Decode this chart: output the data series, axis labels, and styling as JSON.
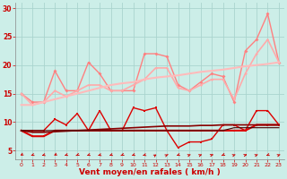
{
  "xlabel": "Vent moyen/en rafales ( km/h )",
  "x": [
    0,
    1,
    2,
    3,
    4,
    5,
    6,
    7,
    8,
    9,
    10,
    11,
    12,
    13,
    14,
    15,
    16,
    17,
    18,
    19,
    20,
    21,
    22,
    23
  ],
  "bg_color": "#cceee8",
  "grid_color": "#aad4ce",
  "line1_y": [
    15.0,
    13.5,
    13.5,
    19.0,
    15.5,
    15.5,
    20.5,
    18.5,
    15.5,
    15.5,
    15.5,
    22.0,
    22.0,
    21.5,
    16.5,
    15.5,
    17.0,
    18.5,
    18.0,
    13.5,
    22.5,
    24.5,
    29.0,
    20.5
  ],
  "line1_color": "#ff8080",
  "line1_lw": 1.0,
  "line2_y": [
    15.0,
    13.0,
    13.5,
    15.5,
    14.5,
    15.5,
    16.5,
    16.5,
    15.5,
    15.5,
    16.5,
    17.5,
    19.5,
    19.5,
    16.0,
    15.5,
    16.5,
    17.5,
    17.5,
    14.0,
    18.5,
    22.0,
    24.5,
    20.5
  ],
  "line2_color": "#ffaaaa",
  "line2_lw": 1.2,
  "line3_y": [
    13.0,
    13.0,
    13.5,
    14.0,
    14.5,
    15.0,
    15.5,
    16.0,
    16.5,
    16.8,
    17.0,
    17.5,
    17.8,
    18.0,
    18.2,
    18.5,
    18.8,
    19.0,
    19.2,
    19.5,
    19.8,
    20.0,
    20.2,
    20.5
  ],
  "line3_color": "#ffbbbb",
  "line3_lw": 1.5,
  "line4_y": [
    8.5,
    8.5,
    8.5,
    10.5,
    9.5,
    11.5,
    8.5,
    12.0,
    8.5,
    8.5,
    12.5,
    12.0,
    12.5,
    8.5,
    5.5,
    6.5,
    6.5,
    7.0,
    9.5,
    9.5,
    8.5,
    12.0,
    12.0,
    9.5
  ],
  "line4_color": "#dd0000",
  "line4_lw": 1.0,
  "line5_y": [
    8.5,
    7.5,
    7.5,
    8.5,
    8.5,
    8.5,
    8.5,
    8.5,
    8.5,
    8.5,
    8.5,
    8.5,
    8.5,
    8.5,
    8.5,
    8.5,
    8.5,
    8.5,
    8.5,
    8.5,
    8.5,
    9.5,
    9.5,
    9.5
  ],
  "line5_color": "#dd0000",
  "line5_lw": 1.5,
  "line6_y": [
    8.5,
    8.2,
    8.2,
    8.3,
    8.4,
    8.5,
    8.6,
    8.7,
    8.8,
    8.9,
    9.0,
    9.1,
    9.2,
    9.3,
    9.3,
    9.3,
    9.4,
    9.4,
    9.5,
    9.5,
    9.5,
    9.5,
    9.5,
    9.5
  ],
  "line6_color": "#880000",
  "line6_lw": 1.2,
  "line7_y": [
    8.5,
    8.5,
    8.5,
    8.5,
    8.5,
    8.5,
    8.5,
    8.5,
    8.5,
    8.5,
    8.5,
    8.5,
    8.5,
    8.5,
    8.5,
    8.5,
    8.5,
    8.5,
    8.5,
    9.0,
    9.0,
    9.0,
    9.0,
    9.0
  ],
  "line7_color": "#440000",
  "line7_lw": 0.8,
  "arrow_color": "#cc0000",
  "ylim": [
    3.5,
    31
  ],
  "yticks": [
    5,
    10,
    15,
    20,
    25,
    30
  ],
  "xticks": [
    0,
    1,
    2,
    3,
    4,
    5,
    6,
    7,
    8,
    9,
    10,
    11,
    12,
    13,
    14,
    15,
    16,
    17,
    18,
    19,
    20,
    21,
    22,
    23
  ]
}
